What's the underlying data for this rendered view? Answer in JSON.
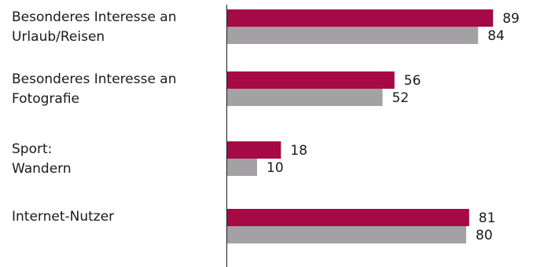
{
  "chart_data": {
    "type": "bar",
    "orientation": "horizontal",
    "categories": [
      [
        "Besonderes Interesse an",
        "Urlaub/Reisen"
      ],
      [
        "Besonderes Interesse an",
        "Fotografie"
      ],
      [
        "Sport:",
        "Wandern"
      ],
      [
        "Internet-Nutzer"
      ]
    ],
    "series": [
      {
        "values": [
          89,
          56,
          18,
          81
        ],
        "color": "#A50A46"
      },
      {
        "values": [
          84,
          52,
          10,
          80
        ],
        "color": "#A3A1A3"
      }
    ],
    "xlim": [
      0,
      100
    ],
    "grid": false,
    "legend": "none",
    "data_labels": true
  }
}
